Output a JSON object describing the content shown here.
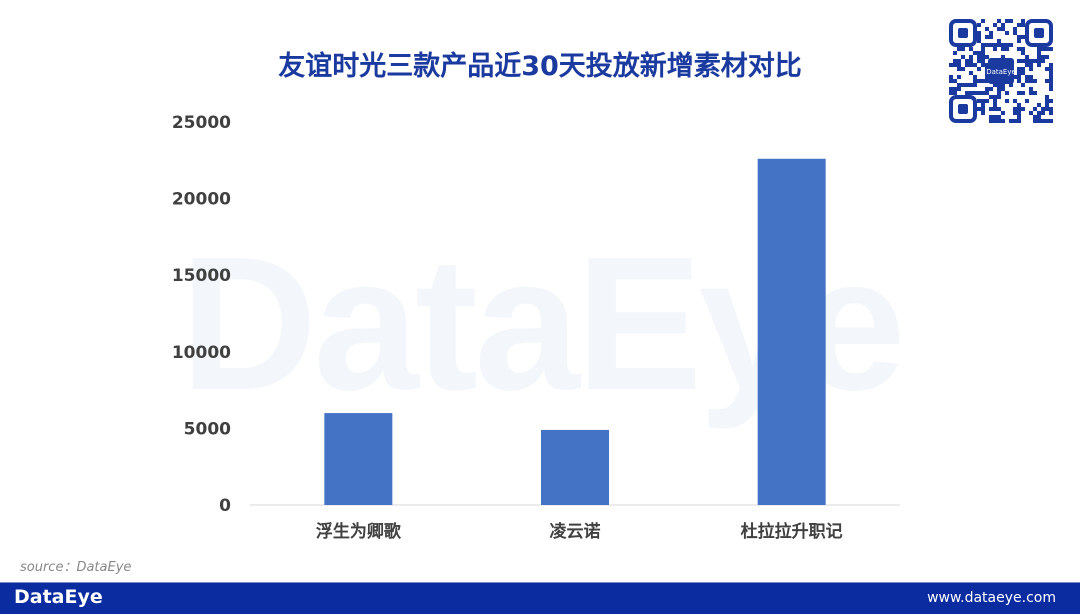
{
  "title": "友谊时光三款产品近30天投放新增素材对比",
  "watermark": "DataEye",
  "source": "source：DataEye",
  "footer": {
    "logo": "DataEye",
    "url": "www.dataeye.com"
  },
  "qr_label": "DataEye",
  "colors": {
    "bar": "#4472c4",
    "title": "#1b3aa0",
    "footer": "#0a2ca0"
  },
  "chart_data": {
    "type": "bar",
    "title": "友谊时光三款产品近30天投放新增素材对比",
    "categories": [
      "浮生为卿歌",
      "凌云诺",
      "杜拉拉升职记"
    ],
    "values": [
      6000,
      4900,
      22600
    ],
    "ylim": [
      0,
      25000
    ],
    "yticks": [
      "0",
      "5000",
      "10000",
      "15000",
      "20000",
      "25000"
    ],
    "grid": false,
    "xlabel": "",
    "ylabel": ""
  }
}
